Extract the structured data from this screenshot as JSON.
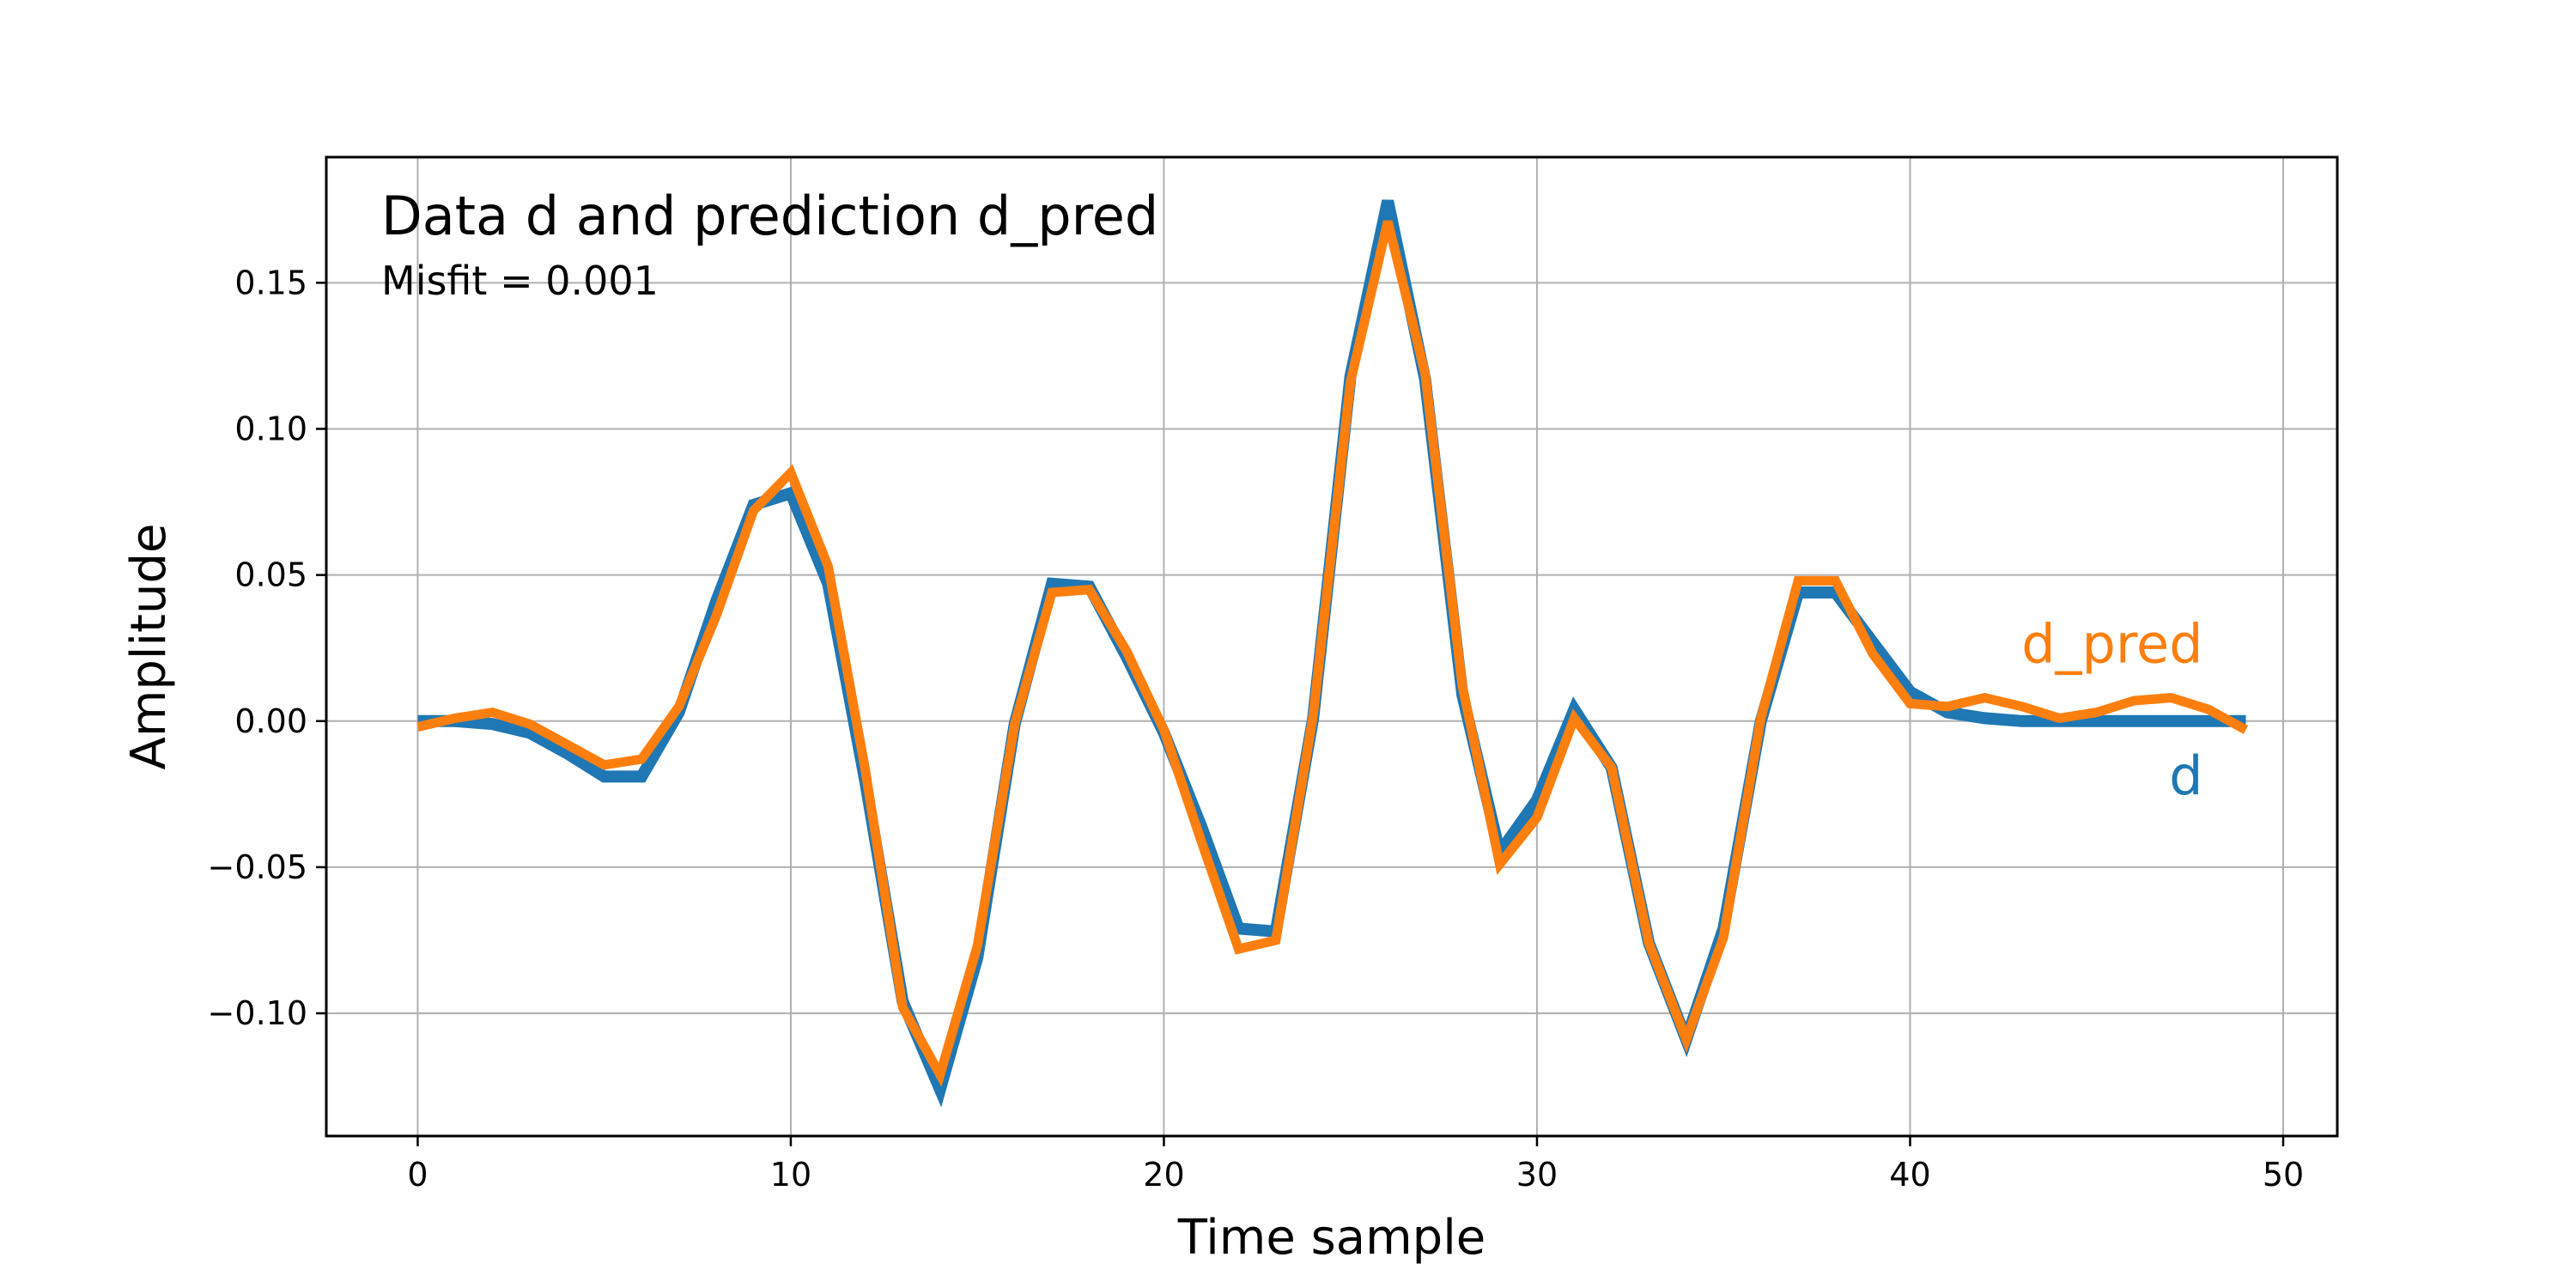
{
  "chart_data": {
    "type": "line",
    "title": "Data d and prediction d_pred",
    "subtitle": "Misfit = 0.001",
    "xlabel": "Time sample",
    "ylabel": "Amplitude",
    "xlim": [
      -2.45,
      51.45
    ],
    "ylim": [
      -0.142,
      0.193
    ],
    "x_ticks": [
      0,
      10,
      20,
      30,
      40,
      50
    ],
    "x_tick_labels": [
      "0",
      "10",
      "20",
      "30",
      "40",
      "50"
    ],
    "y_ticks": [
      -0.1,
      -0.05,
      0.0,
      0.05,
      0.1,
      0.15
    ],
    "y_tick_labels": [
      "−0.10",
      "−0.05",
      "0.00",
      "0.05",
      "0.10",
      "0.15"
    ],
    "grid": true,
    "x": [
      0,
      1,
      2,
      3,
      4,
      5,
      6,
      7,
      8,
      9,
      10,
      11,
      12,
      13,
      14,
      15,
      16,
      17,
      18,
      19,
      20,
      21,
      22,
      23,
      24,
      25,
      26,
      27,
      28,
      29,
      30,
      31,
      32,
      33,
      34,
      35,
      36,
      37,
      38,
      39,
      40,
      41,
      42,
      43,
      44,
      45,
      46,
      47,
      48,
      49
    ],
    "series": [
      {
        "name": "d",
        "color": "#1f77b4",
        "values": [
          0.0,
          0.0,
          -0.001,
          -0.004,
          -0.011,
          -0.019,
          -0.019,
          0.003,
          0.041,
          0.074,
          0.078,
          0.047,
          -0.021,
          -0.096,
          -0.126,
          -0.081,
          -0.001,
          0.047,
          0.046,
          0.022,
          -0.004,
          -0.036,
          -0.071,
          -0.072,
          0.001,
          0.118,
          0.178,
          0.117,
          0.009,
          -0.045,
          -0.027,
          0.004,
          -0.016,
          -0.076,
          -0.109,
          -0.071,
          0.0,
          0.044,
          0.044,
          0.027,
          0.01,
          0.003,
          0.001,
          0.0,
          0.0,
          0.0,
          0.0,
          0.0,
          0.0,
          0.0
        ]
      },
      {
        "name": "d_pred",
        "color": "#ff7f0e",
        "values": [
          -0.002,
          0.001,
          0.003,
          -0.001,
          -0.008,
          -0.015,
          -0.013,
          0.005,
          0.036,
          0.072,
          0.085,
          0.053,
          -0.017,
          -0.098,
          -0.121,
          -0.077,
          -0.001,
          0.044,
          0.045,
          0.024,
          -0.003,
          -0.041,
          -0.078,
          -0.075,
          0.002,
          0.116,
          0.171,
          0.119,
          0.012,
          -0.049,
          -0.033,
          0.001,
          -0.016,
          -0.076,
          -0.109,
          -0.074,
          0.001,
          0.048,
          0.048,
          0.023,
          0.006,
          0.005,
          0.008,
          0.005,
          0.001,
          0.003,
          0.007,
          0.008,
          0.004,
          -0.003
        ]
      }
    ],
    "annotations": [
      {
        "text": "d_pred",
        "series": "d_pred",
        "x": 49,
        "y": 0.02
      },
      {
        "text": "d",
        "series": "d",
        "x": 49,
        "y": -0.025
      }
    ]
  }
}
